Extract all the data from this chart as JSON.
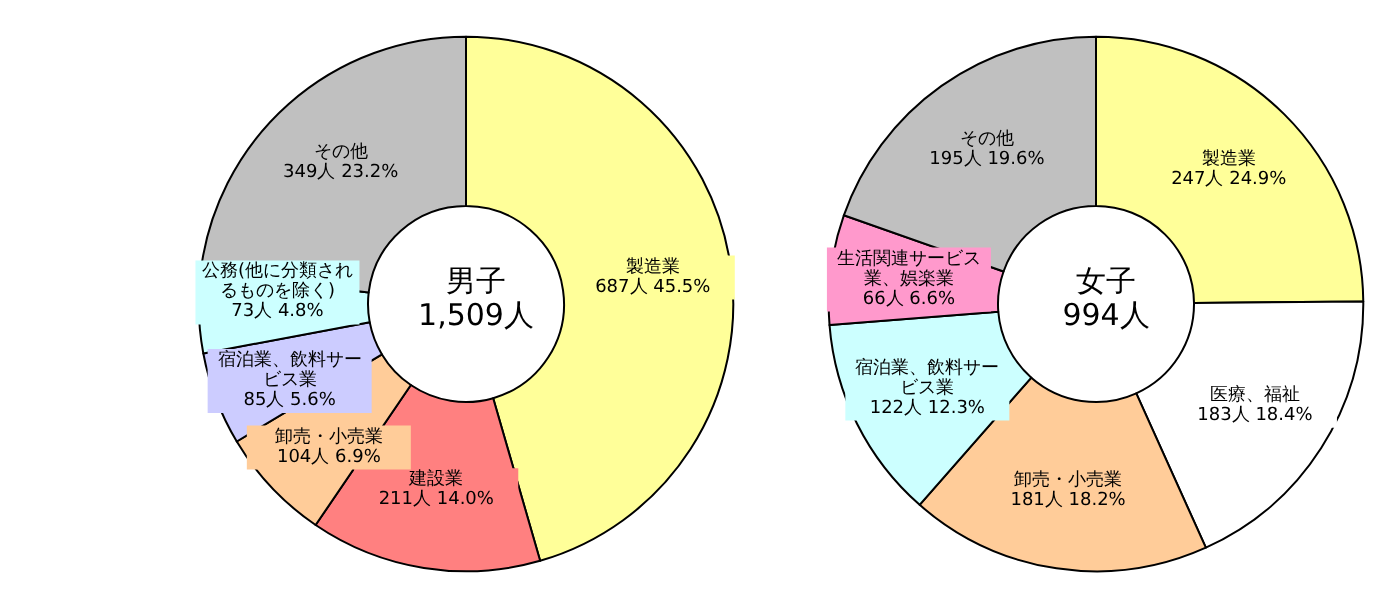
{
  "chart_data": [
    {
      "type": "donut",
      "title": "男子",
      "subtitle": "1,509人",
      "categories": [
        "製造業",
        "建設業",
        "卸売・小売業",
        "宿泊業、飲料サービス業",
        "公務(他に分類されるものを除く)",
        "その他"
      ],
      "values": [
        687,
        211,
        104,
        85,
        73,
        349
      ],
      "value_labels": [
        "687人 45.5%",
        "211人 14.0%",
        "104人 6.9%",
        "85人 5.6%",
        "73人 4.8%",
        "349人 23.2%"
      ],
      "colors": [
        "#ffff99",
        "#ff8080",
        "#ffcc99",
        "#ccccff",
        "#ccffff",
        "#c0c0c0"
      ]
    },
    {
      "type": "donut",
      "title": "女子",
      "subtitle": "994人",
      "categories": [
        "製造業",
        "医療、福祉",
        "卸売・小売業",
        "宿泊業、飲料サービス業",
        "生活関連サービス業、娯楽業",
        "その他"
      ],
      "values": [
        247,
        183,
        181,
        122,
        66,
        195
      ],
      "value_labels": [
        "247人 24.9%",
        "183人 18.4%",
        "181人 18.2%",
        "122人 12.3%",
        "66人 6.6%",
        "195人 19.6%"
      ],
      "colors": [
        "#ffff99",
        "#ffffff",
        "#ffcc99",
        "#ccffff",
        "#ff99cc",
        "#c0c0c0"
      ]
    }
  ]
}
